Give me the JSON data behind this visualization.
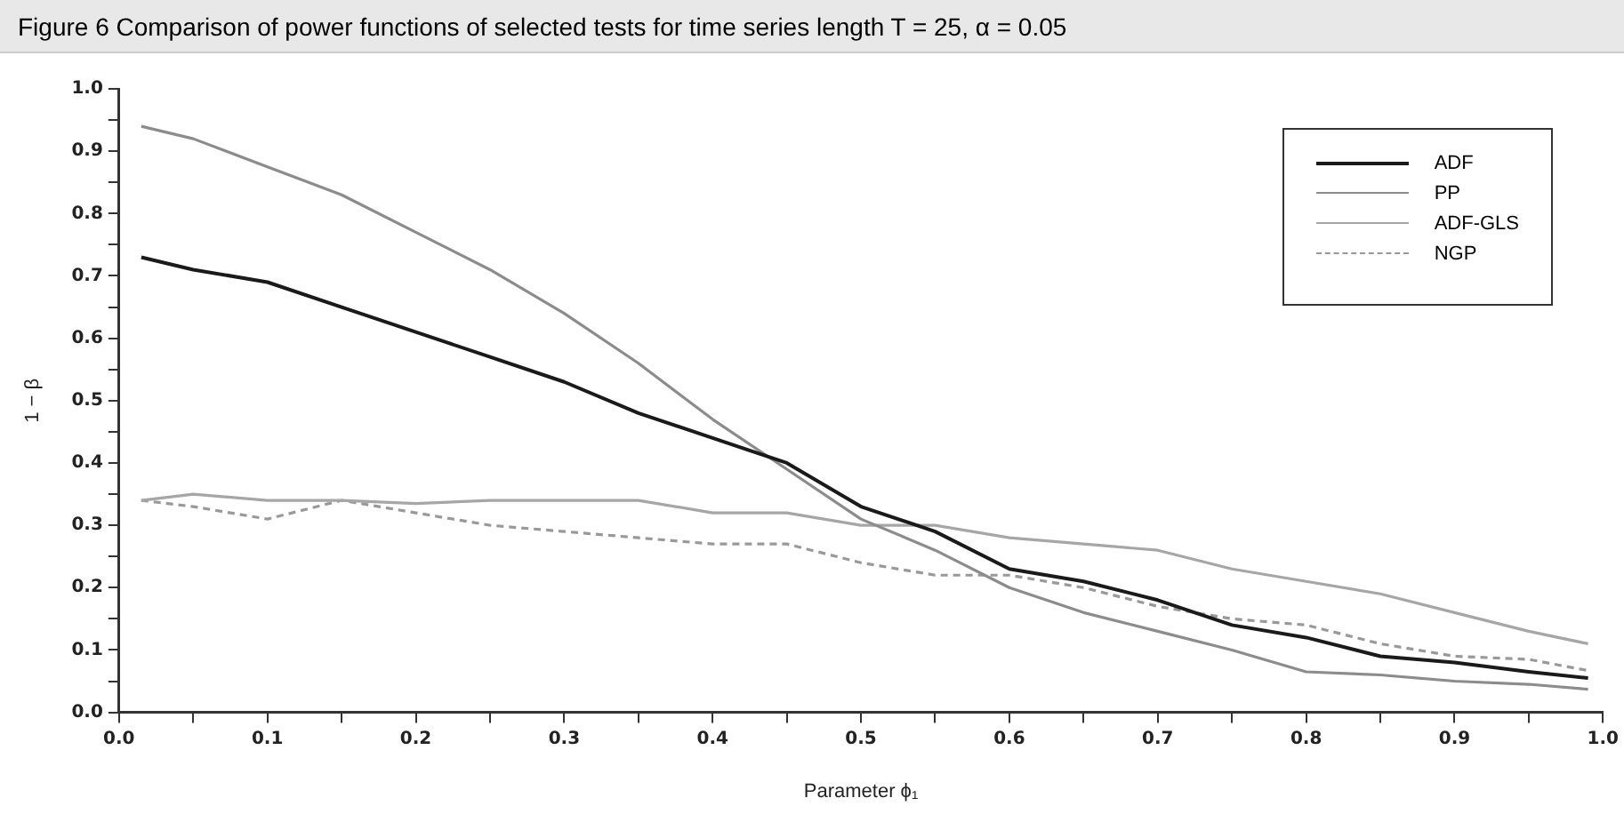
{
  "chart_data": {
    "type": "line",
    "title": "Figure 6  Comparison of power functions of selected tests for time series length T = 25, α = 0.05",
    "xlabel": "Parameter ϕ₁",
    "ylabel": "1 − β",
    "x": [
      0.015,
      0.05,
      0.1,
      0.15,
      0.2,
      0.25,
      0.3,
      0.35,
      0.4,
      0.45,
      0.5,
      0.55,
      0.6,
      0.65,
      0.7,
      0.75,
      0.8,
      0.85,
      0.9,
      0.95,
      0.99
    ],
    "series": [
      {
        "name": "ADF",
        "color": "#1a1a1a",
        "values": [
          0.73,
          0.71,
          0.69,
          0.65,
          0.61,
          0.57,
          0.53,
          0.48,
          0.44,
          0.4,
          0.33,
          0.29,
          0.23,
          0.21,
          0.18,
          0.14,
          0.12,
          0.09,
          0.08,
          0.065,
          0.055
        ]
      },
      {
        "name": "PP",
        "color": "#8c8c8c",
        "values": [
          0.94,
          0.92,
          0.875,
          0.83,
          0.77,
          0.71,
          0.64,
          0.56,
          0.47,
          0.39,
          0.31,
          0.26,
          0.2,
          0.16,
          0.13,
          0.1,
          0.065,
          0.06,
          0.05,
          0.045,
          0.037
        ]
      },
      {
        "name": "ADF-GLS",
        "color": "#a6a6a6",
        "values": [
          0.34,
          0.35,
          0.34,
          0.34,
          0.335,
          0.34,
          0.34,
          0.34,
          0.32,
          0.32,
          0.3,
          0.3,
          0.28,
          0.27,
          0.26,
          0.23,
          0.21,
          0.19,
          0.16,
          0.13,
          0.11
        ]
      },
      {
        "name": "NGP",
        "color": "#999999",
        "line_style": "dashed",
        "values": [
          0.34,
          0.33,
          0.31,
          0.34,
          0.32,
          0.3,
          0.29,
          0.28,
          0.27,
          0.27,
          0.24,
          0.22,
          0.22,
          0.2,
          0.17,
          0.15,
          0.14,
          0.11,
          0.09,
          0.085,
          0.067
        ]
      }
    ],
    "xlim": [
      0,
      1
    ],
    "ylim": [
      0,
      1
    ],
    "xticks": [
      {
        "value": 0,
        "label": "0.0"
      },
      {
        "value": 0.05,
        "label": null
      },
      0.1,
      {
        "value": 0.15,
        "label": null
      },
      0.2,
      {
        "value": 0.25,
        "label": null
      },
      0.3,
      {
        "value": 0.35,
        "label": null
      },
      0.4,
      {
        "value": 0.45,
        "label": null
      },
      0.5,
      {
        "value": 0.55,
        "label": null
      },
      0.6,
      {
        "value": 0.65,
        "label": null
      },
      0.7,
      {
        "value": 0.75,
        "label": null
      },
      0.8,
      {
        "value": 0.85,
        "label": null
      },
      0.9,
      {
        "value": 0.95,
        "label": null
      },
      {
        "value": 1,
        "label": "1.0"
      }
    ],
    "yticks": [
      {
        "value": 0,
        "label": "0.0"
      },
      {
        "value": 0.05,
        "label": null
      },
      0.1,
      {
        "value": 0.15,
        "label": null
      },
      0.2,
      {
        "value": 0.25,
        "label": null
      },
      0.3,
      {
        "value": 0.35,
        "label": null
      },
      0.4,
      {
        "value": 0.45,
        "label": null
      },
      0.5,
      {
        "value": 0.55,
        "label": null
      },
      0.6,
      {
        "value": 0.65,
        "label": null
      },
      0.7,
      {
        "value": 0.75,
        "label": null
      },
      0.8,
      {
        "value": 0.85,
        "label": null
      },
      0.9,
      {
        "value": 0.95,
        "label": null
      },
      {
        "value": 1,
        "label": "1.0"
      }
    ],
    "grid": false,
    "legend": "top right",
    "marker": "none",
    "line_style": "solid"
  }
}
